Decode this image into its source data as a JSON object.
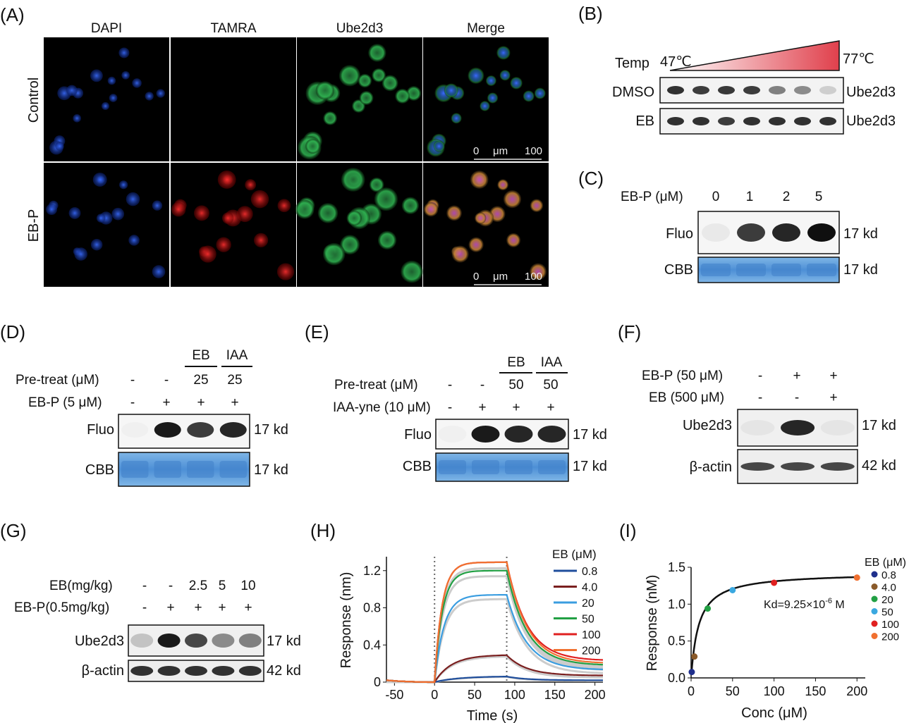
{
  "panel_letters": [
    "(A)",
    "(B)",
    "(C)",
    "(D)",
    "(E)",
    "(F)",
    "(G)",
    "(H)",
    "(I)"
  ],
  "panel_a": {
    "columns": [
      "DAPI",
      "TAMRA",
      "Ube2d3",
      "Merge"
    ],
    "rows": [
      "Control",
      "EB-P"
    ],
    "scalebar": {
      "start": "0",
      "unit": "μm",
      "end": "100"
    },
    "colors": {
      "dapi": "#1a4fd6",
      "tamra": "#d81818",
      "ube2d3": "#22a044",
      "merge": "#b040a8"
    }
  },
  "panel_b": {
    "temp_label": "Temp",
    "temp_low": "47℃",
    "temp_high": "77℃",
    "rows": [
      "DMSO",
      "EB"
    ],
    "protein": "Ube2d3",
    "band_intensities": {
      "DMSO": [
        0.85,
        0.8,
        0.82,
        0.8,
        0.5,
        0.45,
        0.15
      ],
      "EB": [
        0.85,
        0.85,
        0.8,
        0.85,
        0.85,
        0.85,
        0.85
      ]
    },
    "gradient_colors": [
      "#ffffff",
      "#e0404c"
    ]
  },
  "panel_c": {
    "dose_label": "EB-P (μM)",
    "doses": [
      "0",
      "1",
      "2",
      "5"
    ],
    "rows": [
      "Fluo",
      "CBB"
    ],
    "sizes": [
      "17 kd",
      "17 kd"
    ],
    "fluo_intensities": [
      0.03,
      0.8,
      0.9,
      1.0
    ]
  },
  "panel_d": {
    "groups": [
      "EB",
      "IAA"
    ],
    "group_values": [
      "25",
      "25"
    ],
    "pretreat_label": "Pre-treat (μM)",
    "pretreat_values": [
      "-",
      "-"
    ],
    "probe_label": "EB-P (5 μM)",
    "probe_values": [
      "-",
      "+",
      "+",
      "+"
    ],
    "rows": [
      "Fluo",
      "CBB"
    ],
    "sizes": [
      "17 kd",
      "17 kd"
    ],
    "fluo_intensities": [
      0.0,
      0.95,
      0.8,
      0.9
    ]
  },
  "panel_e": {
    "groups": [
      "EB",
      "IAA"
    ],
    "group_values": [
      "50",
      "50"
    ],
    "pretreat_label": "Pre-treat (μM)",
    "pretreat_values": [
      "-",
      "-"
    ],
    "probe_label": "IAA-yne (10 μM)",
    "probe_values": [
      "-",
      "+",
      "+",
      "+"
    ],
    "rows": [
      "Fluo",
      "CBB"
    ],
    "sizes": [
      "17 kd",
      "17 kd"
    ],
    "fluo_intensities": [
      0.0,
      0.95,
      0.9,
      0.9
    ]
  },
  "panel_f": {
    "row1_label": "EB-P (50 μM)",
    "row1_values": [
      "-",
      "+",
      "+"
    ],
    "row2_label": "EB (500 μM)",
    "row2_values": [
      "-",
      "-",
      "+"
    ],
    "rows": [
      "Ube2d3",
      "β-actin"
    ],
    "sizes": [
      "17 kd",
      "42 kd"
    ],
    "ube_intensities": [
      0.05,
      0.9,
      0.05
    ]
  },
  "panel_g": {
    "row1_label": "EB(mg/kg)",
    "row1_values": [
      "-",
      "-",
      "2.5",
      "5",
      "10"
    ],
    "row2_label": "EB-P(0.5mg/kg)",
    "row2_values": [
      "-",
      "+",
      "+",
      "+",
      "+"
    ],
    "rows": [
      "Ube2d3",
      "β-actin"
    ],
    "sizes": [
      "17 kd",
      "42 kd"
    ],
    "ube_intensities": [
      0.2,
      0.95,
      0.75,
      0.45,
      0.5
    ]
  },
  "chart_data": [
    {
      "type": "line",
      "panel": "H",
      "xlabel": "Time (s)",
      "ylabel": "Response (nm)",
      "xlim": [
        -60,
        210
      ],
      "ylim": [
        0,
        1.35
      ],
      "xticks": [
        "-50",
        "0",
        "50",
        "100",
        "150",
        "200"
      ],
      "yticks": [
        "0",
        "0.4",
        "0.8",
        "1.2"
      ],
      "legend_title": "EB (μM)",
      "legend_position": "right",
      "association_start_s": 0,
      "dissociation_start_s": 90,
      "series": [
        {
          "name": "0.8",
          "color": "#1f4e9c",
          "plateau": 0.06,
          "end": 0.02
        },
        {
          "name": "4.0",
          "color": "#7a1f1f",
          "plateau": 0.29,
          "end": 0.07
        },
        {
          "name": "20",
          "color": "#3a9de0",
          "plateau": 0.94,
          "end": 0.13
        },
        {
          "name": "50",
          "color": "#22a044",
          "plateau": 1.2,
          "end": 0.18
        },
        {
          "name": "100",
          "color": "#e02020",
          "plateau": 1.29,
          "end": 0.23
        },
        {
          "name": "200",
          "color": "#f07030",
          "plateau": 1.29,
          "end": 0.2
        }
      ]
    },
    {
      "type": "scatter",
      "panel": "I",
      "xlabel": "Conc (μM)",
      "ylabel": "Response (nM)",
      "xlim": [
        0,
        210
      ],
      "ylim": [
        0,
        1.5
      ],
      "xticks": [
        "0",
        "50",
        "100",
        "150",
        "200"
      ],
      "yticks": [
        "0.0",
        "0.5",
        "1.0",
        "1.5"
      ],
      "annotation": "Kd=9.25×10",
      "annotation_exp": "-6",
      "annotation_unit": " M",
      "legend_title": "EB (μM)",
      "legend_position": "right",
      "points": [
        {
          "name": "0.8",
          "x": 0.8,
          "y": 0.08,
          "color": "#1f2f8c"
        },
        {
          "name": "4.0",
          "x": 4.0,
          "y": 0.29,
          "color": "#8a5a2a"
        },
        {
          "name": "20",
          "x": 20,
          "y": 0.94,
          "color": "#22a044"
        },
        {
          "name": "50",
          "x": 50,
          "y": 1.19,
          "color": "#3aa8e0"
        },
        {
          "name": "100",
          "x": 100,
          "y": 1.29,
          "color": "#e02020"
        },
        {
          "name": "200",
          "x": 200,
          "y": 1.36,
          "color": "#f07030"
        }
      ],
      "fit": {
        "model": "langmuir",
        "rmax": 1.43,
        "kd_um": 9.25
      }
    }
  ]
}
